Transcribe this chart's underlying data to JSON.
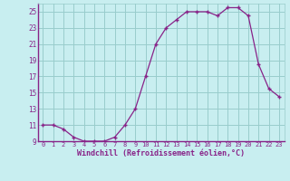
{
  "x": [
    0,
    1,
    2,
    3,
    4,
    5,
    6,
    7,
    8,
    9,
    10,
    11,
    12,
    13,
    14,
    15,
    16,
    17,
    18,
    19,
    20,
    21,
    22,
    23
  ],
  "y": [
    11,
    11,
    10.5,
    9.5,
    9,
    9,
    9,
    9.5,
    11,
    13,
    17,
    21,
    23,
    24,
    25,
    25,
    25,
    24.5,
    25.5,
    25.5,
    24.5,
    18.5,
    15.5,
    14.5
  ],
  "line_color": "#882288",
  "marker": "+",
  "background_color": "#c8eef0",
  "grid_color": "#99cccc",
  "xlabel": "Windchill (Refroidissement éolien,°C)",
  "xlabel_color": "#882288",
  "tick_color": "#882288",
  "ylim": [
    9,
    26
  ],
  "yticks": [
    9,
    11,
    13,
    15,
    17,
    19,
    21,
    23,
    25
  ],
  "xlim": [
    -0.5,
    23.5
  ],
  "xticks": [
    0,
    1,
    2,
    3,
    4,
    5,
    6,
    7,
    8,
    9,
    10,
    11,
    12,
    13,
    14,
    15,
    16,
    17,
    18,
    19,
    20,
    21,
    22,
    23
  ]
}
